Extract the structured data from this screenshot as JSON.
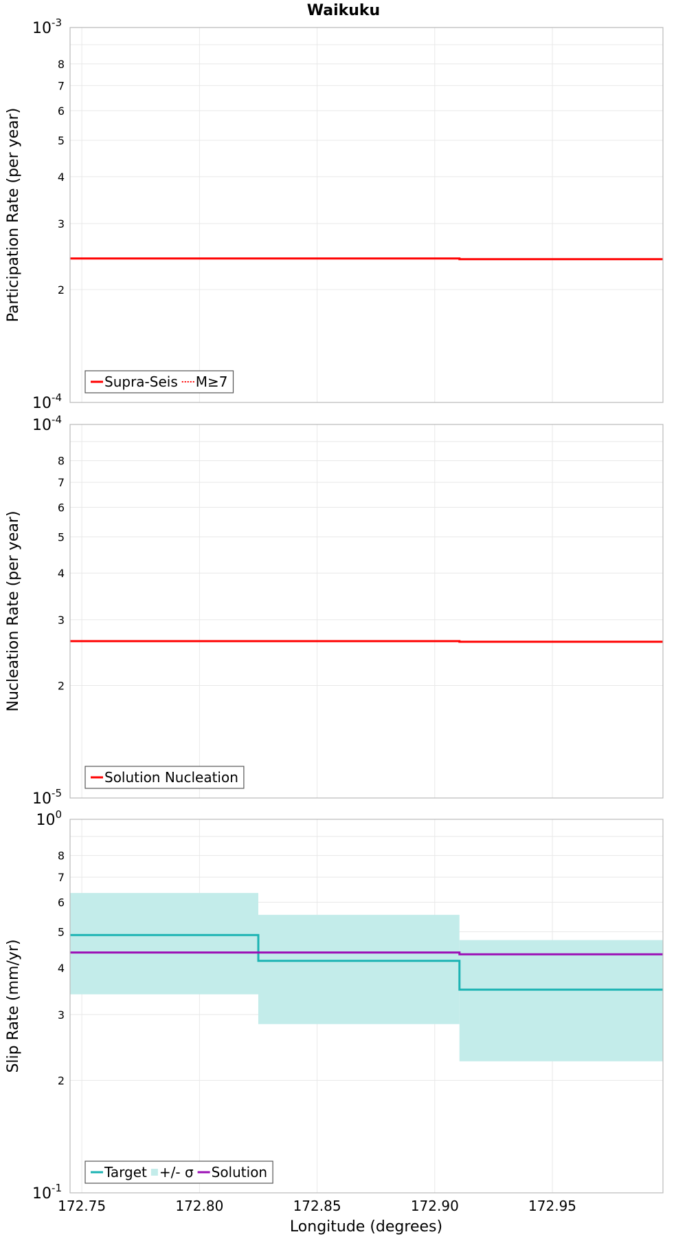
{
  "title": "Waikuku",
  "xlabel": "Longitude (degrees)",
  "colors": {
    "red": "#ff0000",
    "teal": "#1bb3b3",
    "band": "#c3ecea",
    "purple": "#9b0fb5",
    "grid": "#e8e8e8",
    "frame": "#b9b9b9"
  },
  "x_ticks": [
    "172.75",
    "172.80",
    "172.85",
    "172.90",
    "172.95"
  ],
  "chart_data": [
    {
      "type": "line",
      "ylabel": "Participation Rate (per year)",
      "xlim": [
        172.745,
        172.997
      ],
      "ylim": [
        0.0001,
        0.001
      ],
      "yscale": "log",
      "ytop_label": {
        "base": "10",
        "exp": "-3"
      },
      "ybottom_label": {
        "base": "10",
        "exp": "-4"
      },
      "y_minor_labels": [
        "8",
        "7",
        "6",
        "5",
        "4",
        "3",
        "2"
      ],
      "grid": true,
      "legend_position": "bottom-left",
      "legend": [
        {
          "label": "Supra-Seis",
          "style": "solid",
          "color": "#ff0000"
        },
        {
          "label": "M≥7",
          "style": "dotted",
          "color": "#ff0000"
        }
      ],
      "series": [
        {
          "name": "Supra-Seis",
          "style": "solid",
          "color": "#ff0000",
          "x": [
            172.745,
            172.825,
            172.825,
            172.9105,
            172.9105,
            172.997
          ],
          "y": [
            0.000242,
            0.000242,
            0.000242,
            0.000242,
            0.000241,
            0.000241
          ]
        },
        {
          "name": "M≥7",
          "style": "dotted",
          "color": "#ff0000",
          "x": [
            172.745,
            172.825,
            172.825,
            172.9105,
            172.9105,
            172.997
          ],
          "y": [
            0.000242,
            0.000242,
            0.000242,
            0.000242,
            0.000241,
            0.000241
          ]
        }
      ]
    },
    {
      "type": "line",
      "ylabel": "Nucleation Rate (per year)",
      "xlim": [
        172.745,
        172.997
      ],
      "ylim": [
        1e-05,
        0.0001
      ],
      "yscale": "log",
      "ytop_label": {
        "base": "10",
        "exp": "-4"
      },
      "ybottom_label": {
        "base": "10",
        "exp": "-5"
      },
      "y_minor_labels": [
        "8",
        "7",
        "6",
        "5",
        "4",
        "3",
        "2"
      ],
      "grid": true,
      "legend_position": "bottom-left",
      "legend": [
        {
          "label": "Solution Nucleation",
          "style": "solid",
          "color": "#ff0000"
        }
      ],
      "series": [
        {
          "name": "Solution Nucleation",
          "style": "solid",
          "color": "#ff0000",
          "x": [
            172.745,
            172.825,
            172.825,
            172.9105,
            172.9105,
            172.997
          ],
          "y": [
            2.63e-05,
            2.63e-05,
            2.63e-05,
            2.63e-05,
            2.62e-05,
            2.62e-05
          ]
        }
      ]
    },
    {
      "type": "line",
      "ylabel": "Slip Rate (mm/yr)",
      "xlim": [
        172.745,
        172.997
      ],
      "ylim": [
        0.1,
        1
      ],
      "yscale": "log",
      "ytop_label": {
        "base": "10",
        "exp": "0"
      },
      "ybottom_label": {
        "base": "10",
        "exp": "-1"
      },
      "y_minor_labels": [
        "8",
        "7",
        "6",
        "5",
        "4",
        "3",
        "2"
      ],
      "grid": true,
      "legend_position": "bottom-left",
      "legend": [
        {
          "label": "Target",
          "style": "solid",
          "color": "#1bb3b3"
        },
        {
          "label": "+/- σ",
          "style": "band",
          "color": "#c3ecea"
        },
        {
          "label": "Solution",
          "style": "solid",
          "color": "#9b0fb5"
        }
      ],
      "bands": [
        {
          "x0": 172.745,
          "x1": 172.825,
          "low": 0.34,
          "high": 0.635
        },
        {
          "x0": 172.825,
          "x1": 172.9105,
          "low": 0.283,
          "high": 0.555
        },
        {
          "x0": 172.9105,
          "x1": 172.997,
          "low": 0.225,
          "high": 0.475
        }
      ],
      "series": [
        {
          "name": "Target",
          "style": "solid",
          "color": "#1bb3b3",
          "x": [
            172.745,
            172.825,
            172.825,
            172.9105,
            172.9105,
            172.997
          ],
          "y": [
            0.49,
            0.49,
            0.418,
            0.418,
            0.35,
            0.35
          ]
        },
        {
          "name": "Solution",
          "style": "solid",
          "color": "#9b0fb5",
          "x": [
            172.745,
            172.825,
            172.825,
            172.9105,
            172.9105,
            172.997
          ],
          "y": [
            0.44,
            0.44,
            0.44,
            0.44,
            0.435,
            0.435
          ]
        }
      ]
    }
  ]
}
